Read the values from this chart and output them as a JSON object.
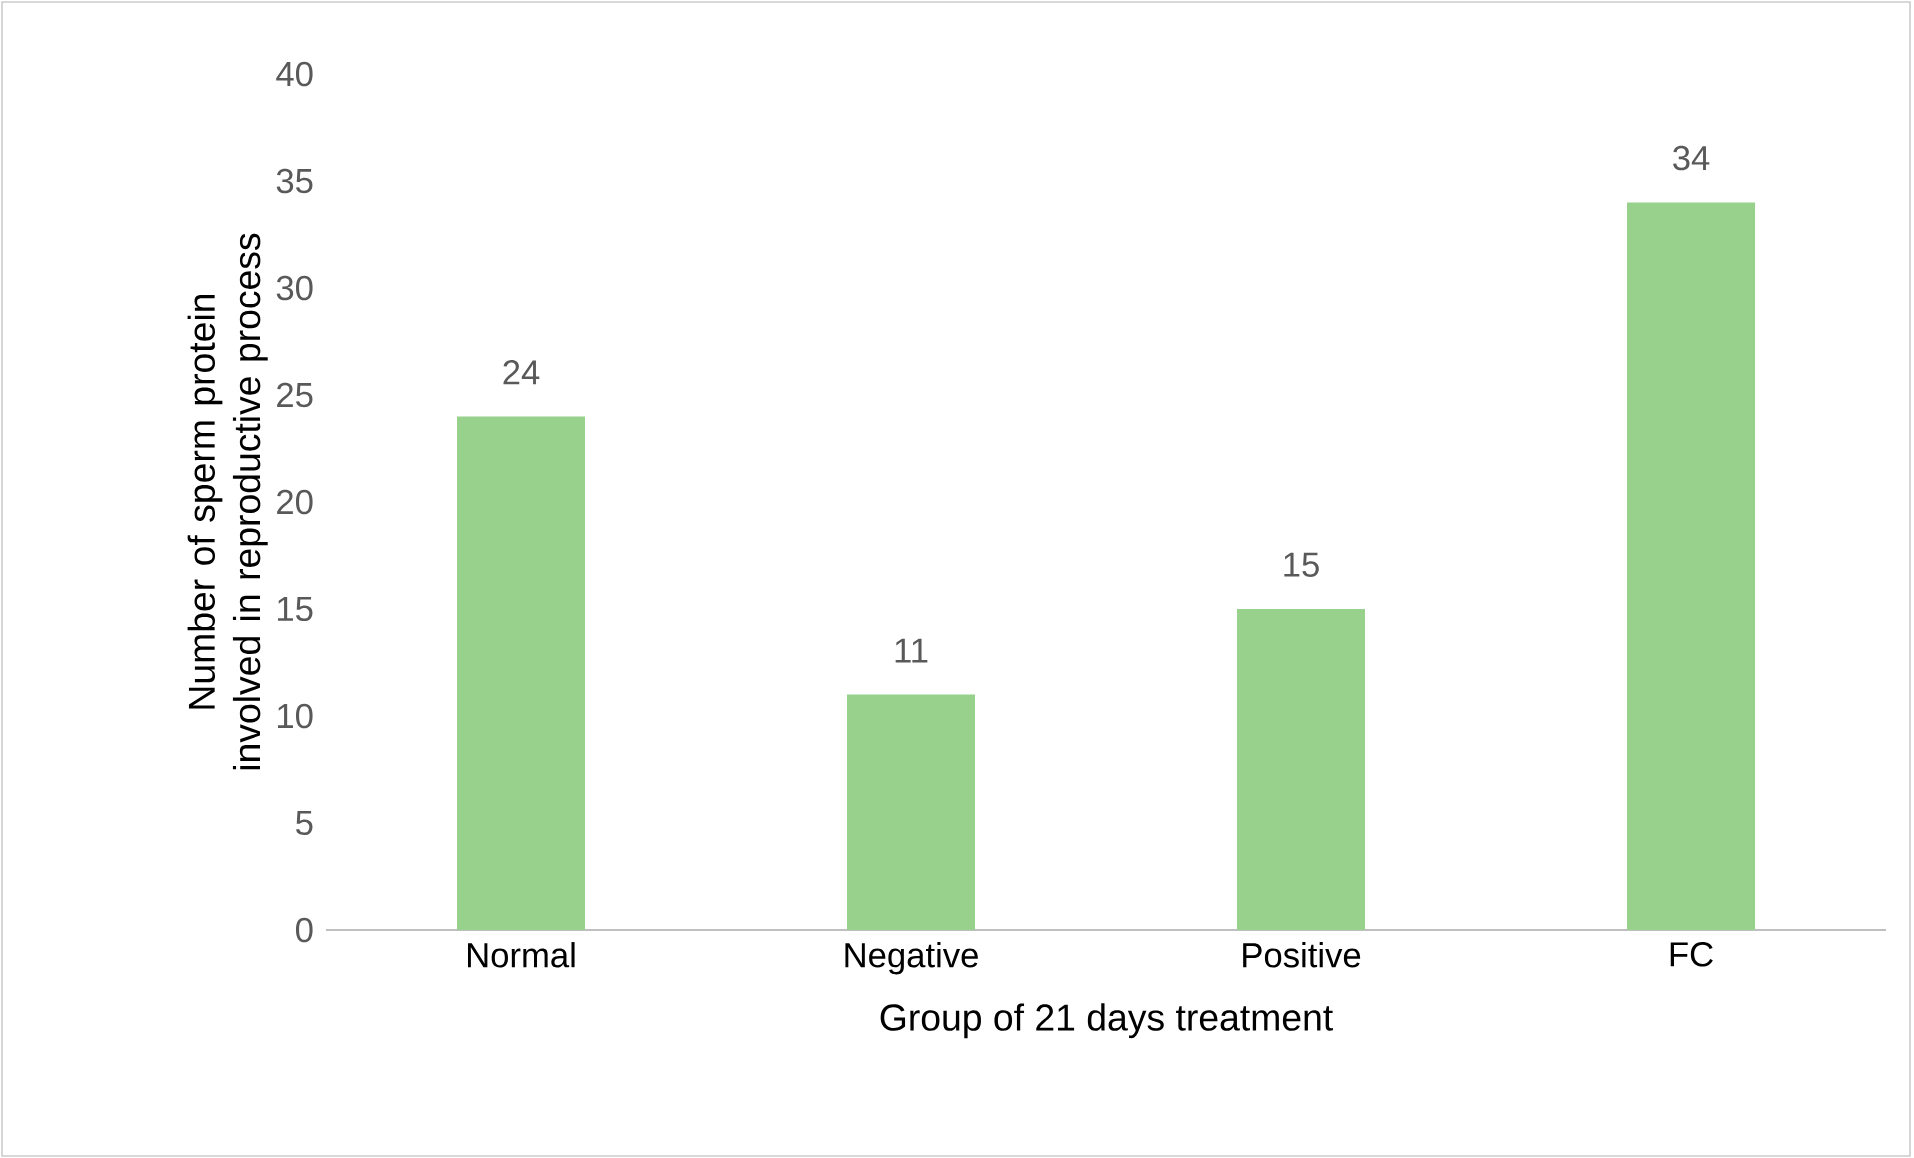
{
  "chart_data": {
    "type": "bar",
    "xlabel": "Group of 21 days treatment",
    "ylabel": "Number of sperm protein involved in reproductive process",
    "categories": [
      "Normal",
      "Negative",
      "Positive",
      "FC"
    ],
    "values": [
      24,
      11,
      15,
      34
    ],
    "color": "#97d18b",
    "ylim": [
      0,
      40
    ],
    "yticks": [
      0,
      5,
      10,
      15,
      20,
      25,
      30,
      35,
      40
    ],
    "data_labels": true,
    "grid": false
  }
}
